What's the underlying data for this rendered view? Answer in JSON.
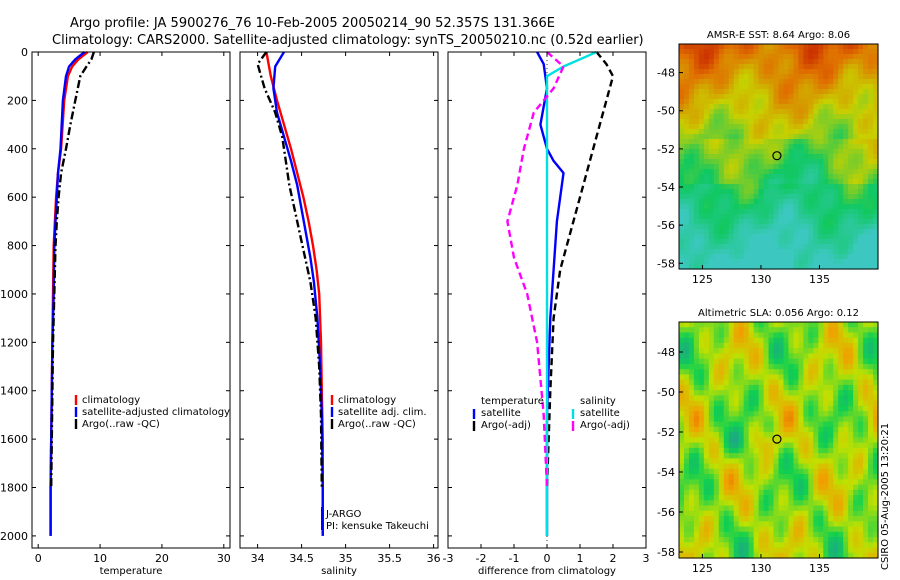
{
  "figure": {
    "title_line1": "Argo profile: JA 5900276_76 10-Feb-2005 20050214_90 52.357S 131.366E",
    "title_line2": "Climatology: CARS2000. Satellite-adjusted climatology: synTS_20050210.nc (0.52d earlier)",
    "side_label": "CSIRO 05-Aug-2005 13:20:21"
  },
  "chart_data": [
    {
      "type": "line",
      "id": "temperature",
      "xlabel": "temperature",
      "ylabel": "",
      "xlim": [
        -1,
        31
      ],
      "ylim": [
        0,
        2050
      ],
      "y_reversed": true,
      "xticks": [
        0,
        10,
        20,
        30
      ],
      "yticks": [
        0,
        200,
        400,
        600,
        800,
        1000,
        1200,
        1400,
        1600,
        1800,
        2000
      ],
      "legend": {
        "position": "lower-right",
        "entries": [
          "climatology",
          "satellite-adjusted climatology",
          "Argo(..raw -QC)"
        ]
      },
      "series": [
        {
          "name": "climatology",
          "color": "#ff0000",
          "style": "solid",
          "x": [
            8.0,
            6.5,
            5.5,
            4.8,
            4.2,
            3.7,
            3.2,
            2.9,
            2.7,
            2.5,
            2.4,
            2.3,
            2.2,
            2.1,
            2.0,
            2.0
          ],
          "y": [
            0,
            30,
            60,
            100,
            200,
            400,
            500,
            600,
            700,
            800,
            1000,
            1200,
            1400,
            1600,
            1800,
            2000
          ]
        },
        {
          "name": "satellite-adjusted climatology",
          "color": "#0000ff",
          "style": "solid",
          "x": [
            7.5,
            6.0,
            5.0,
            4.5,
            4.0,
            3.6,
            3.2,
            3.0,
            2.8,
            2.6,
            2.5,
            2.3,
            2.2,
            2.1,
            2.0,
            2.0
          ],
          "y": [
            0,
            30,
            60,
            100,
            200,
            400,
            500,
            600,
            700,
            800,
            1000,
            1200,
            1400,
            1600,
            1800,
            2000
          ]
        },
        {
          "name": "Argo(..raw -QC)",
          "color": "#000000",
          "style": "dashdot",
          "x": [
            9.0,
            8.6,
            7.8,
            6.8,
            6.0,
            5.2,
            4.5,
            3.7,
            3.3,
            3.0,
            2.8,
            2.6,
            2.4,
            2.3,
            2.2,
            2.1
          ],
          "y": [
            0,
            30,
            60,
            100,
            200,
            300,
            400,
            500,
            600,
            700,
            800,
            1000,
            1200,
            1400,
            1600,
            1800
          ]
        }
      ]
    },
    {
      "type": "line",
      "id": "salinity",
      "xlabel": "salinity",
      "ylabel": "",
      "xlim": [
        33.8,
        36.05
      ],
      "ylim": [
        0,
        2050
      ],
      "y_reversed": true,
      "xticks": [
        34,
        34.5,
        35,
        35.5,
        36
      ],
      "xtick_labels": [
        "34",
        "34.5",
        "35",
        "35.5",
        "36"
      ],
      "legend": {
        "position": "lower-right",
        "entries": [
          "climatology",
          "satellite adj. clim.",
          "Argo(..raw -QC)"
        ]
      },
      "annotations": [
        "J-ARGO",
        "PI: kensuke Takeuchi"
      ],
      "series": [
        {
          "name": "climatology",
          "color": "#ff0000",
          "style": "solid",
          "x": [
            34.1,
            34.15,
            34.22,
            34.3,
            34.38,
            34.45,
            34.52,
            34.58,
            34.63,
            34.67,
            34.7,
            34.72,
            34.73,
            34.74,
            34.74
          ],
          "y": [
            0,
            100,
            200,
            300,
            400,
            500,
            600,
            700,
            800,
            900,
            1000,
            1200,
            1400,
            1600,
            2000
          ]
        },
        {
          "name": "satellite adj. clim.",
          "color": "#0000ff",
          "style": "solid",
          "x": [
            34.3,
            34.2,
            34.18,
            34.22,
            34.3,
            34.38,
            34.45,
            34.5,
            34.55,
            34.6,
            34.64,
            34.68,
            34.71,
            34.73,
            34.74,
            34.74
          ],
          "y": [
            0,
            60,
            150,
            250,
            350,
            450,
            550,
            650,
            750,
            850,
            950,
            1100,
            1300,
            1500,
            1800,
            2000
          ]
        },
        {
          "name": "Argo(..raw -QC)",
          "color": "#000000",
          "style": "dashdot",
          "x": [
            34.1,
            34.0,
            34.08,
            34.2,
            34.28,
            34.32,
            34.36,
            34.42,
            34.48,
            34.54,
            34.6,
            34.66,
            34.7,
            34.72,
            34.73
          ],
          "y": [
            0,
            50,
            150,
            250,
            350,
            450,
            550,
            650,
            750,
            850,
            950,
            1100,
            1300,
            1500,
            1800
          ]
        }
      ]
    },
    {
      "type": "line",
      "id": "difference",
      "xlabel": "difference from climatology",
      "ylabel": "",
      "xlim": [
        -3,
        3
      ],
      "ylim": [
        0,
        2050
      ],
      "y_reversed": true,
      "xticks": [
        -3,
        -2,
        -1,
        0,
        1,
        2,
        3
      ],
      "legend": {
        "position": "lower-center",
        "temperature_title": "temperature",
        "salinity_title": "salinity",
        "entries": [
          "satellite",
          "Argo(-adj)",
          "satellite",
          "Argo(-adj)"
        ]
      },
      "series": [
        {
          "name": "temperature satellite",
          "color": "#0000ff",
          "style": "solid",
          "x": [
            -0.3,
            -0.1,
            0.0,
            -0.2,
            0.0,
            0.2,
            0.5,
            0.3,
            0.2,
            0.1,
            0.0,
            0.0
          ],
          "y": [
            0,
            50,
            150,
            300,
            400,
            450,
            500,
            700,
            900,
            1100,
            1500,
            2000
          ]
        },
        {
          "name": "temperature Argo(-adj)",
          "color": "#000000",
          "style": "dashed",
          "x": [
            1.5,
            1.8,
            2.0,
            1.8,
            1.6,
            1.4,
            1.2,
            1.0,
            0.8,
            0.6,
            0.4,
            0.2,
            0.1,
            0.0
          ],
          "y": [
            0,
            50,
            100,
            200,
            300,
            400,
            500,
            600,
            700,
            800,
            900,
            1100,
            1400,
            1800
          ]
        },
        {
          "name": "salinity satellite",
          "color": "#00e0e0",
          "style": "solid",
          "x": [
            1.5,
            1.0,
            0.5,
            0.0,
            0.0,
            0.0,
            0.0,
            0.0,
            0.0,
            0.0
          ],
          "y": [
            0,
            30,
            60,
            100,
            300,
            600,
            900,
            1200,
            1600,
            2000
          ]
        },
        {
          "name": "salinity Argo(-adj)",
          "color": "#ff00ff",
          "style": "dashed",
          "x": [
            0.0,
            0.5,
            0.2,
            -0.4,
            -0.7,
            -0.9,
            -1.2,
            -1.0,
            -0.6,
            -0.3,
            -0.1,
            0.0
          ],
          "y": [
            0,
            60,
            150,
            250,
            400,
            550,
            700,
            850,
            1000,
            1200,
            1500,
            1800
          ]
        }
      ]
    },
    {
      "type": "heatmap",
      "id": "sst-map",
      "title": "AMSR-E SST: 8.64 Argo: 8.06",
      "xlim": [
        123,
        140
      ],
      "ylim": [
        -58.3,
        -46.5
      ],
      "xticks": [
        125,
        130,
        135
      ],
      "yticks": [
        -48,
        -50,
        -52,
        -54,
        -56,
        -58
      ],
      "marker": {
        "x": 131.366,
        "y": -52.357
      },
      "colors": [
        "#3cc8c0",
        "#10c860",
        "#c8d000",
        "#e07000",
        "#c01000"
      ]
    },
    {
      "type": "heatmap",
      "id": "sla-map",
      "title": "Altimetric SLA: 0.056 Argo: 0.12",
      "xlim": [
        123,
        140
      ],
      "ylim": [
        -58.3,
        -46.5
      ],
      "xticks": [
        125,
        130,
        135
      ],
      "yticks": [
        -48,
        -50,
        -52,
        -54,
        -56,
        -58
      ],
      "marker": {
        "x": 131.366,
        "y": -52.357
      },
      "colors": [
        "#20a090",
        "#10d050",
        "#c0e000",
        "#f0a000",
        "#e04000"
      ]
    }
  ]
}
